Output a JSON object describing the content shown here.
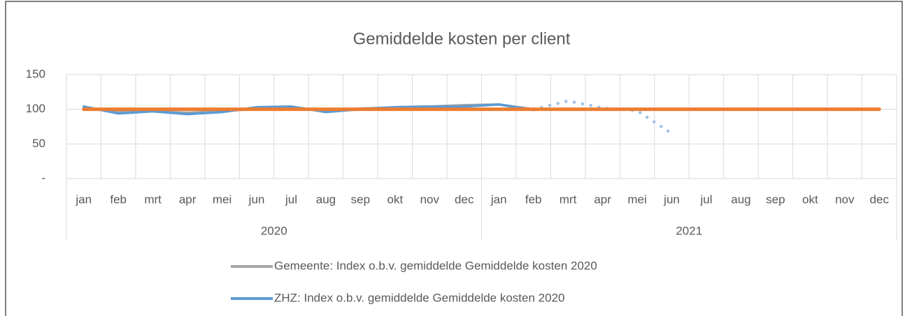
{
  "chart_data": {
    "type": "line",
    "title": "Gemiddelde kosten per client",
    "categories": [
      "jan",
      "feb",
      "mrt",
      "apr",
      "mei",
      "jun",
      "jul",
      "aug",
      "sep",
      "okt",
      "nov",
      "dec",
      "jan",
      "feb",
      "mrt",
      "apr",
      "mei",
      "jun",
      "jul",
      "aug",
      "sep",
      "okt",
      "nov",
      "dec"
    ],
    "category_groups": [
      "2020",
      "2021"
    ],
    "ylim": [
      0,
      150
    ],
    "yticks": [
      {
        "value": 0,
        "label": "-"
      },
      50,
      100,
      150
    ],
    "grid": true,
    "legend": "bottom",
    "series": [
      {
        "name": "Gemeente: Index o.b.v. gemiddelde Gemiddelde kosten 2020",
        "color": "#a5a5a5",
        "values": [
          102,
          96,
          97,
          95,
          97,
          101,
          103,
          98,
          101,
          103,
          104,
          106,
          107,
          100,
          null,
          null,
          null,
          null,
          null,
          null,
          null,
          null,
          null,
          null
        ]
      },
      {
        "name": "ZHZ: Index o.b.v. gemiddelde Gemiddelde kosten 2020",
        "color": "#5b9bd5",
        "values": [
          104,
          94,
          97,
          93,
          96,
          103,
          104,
          96,
          100,
          103,
          104,
          104,
          107,
          99,
          null,
          null,
          null,
          null,
          null,
          null,
          null,
          null,
          null,
          null
        ]
      },
      {
        "color": "#9dc3e6",
        "line_style": "dotted",
        "values": [
          null,
          null,
          null,
          null,
          null,
          null,
          null,
          null,
          null,
          null,
          null,
          null,
          null,
          100,
          112,
          102,
          98,
          65,
          null,
          null,
          null,
          null,
          null,
          null
        ]
      },
      {
        "color": "#ed7d31",
        "values": [
          100,
          100,
          100,
          100,
          100,
          100,
          100,
          100,
          100,
          100,
          100,
          100,
          100,
          100,
          100,
          100,
          100,
          100,
          100,
          100,
          100,
          100,
          100,
          100
        ]
      }
    ]
  }
}
